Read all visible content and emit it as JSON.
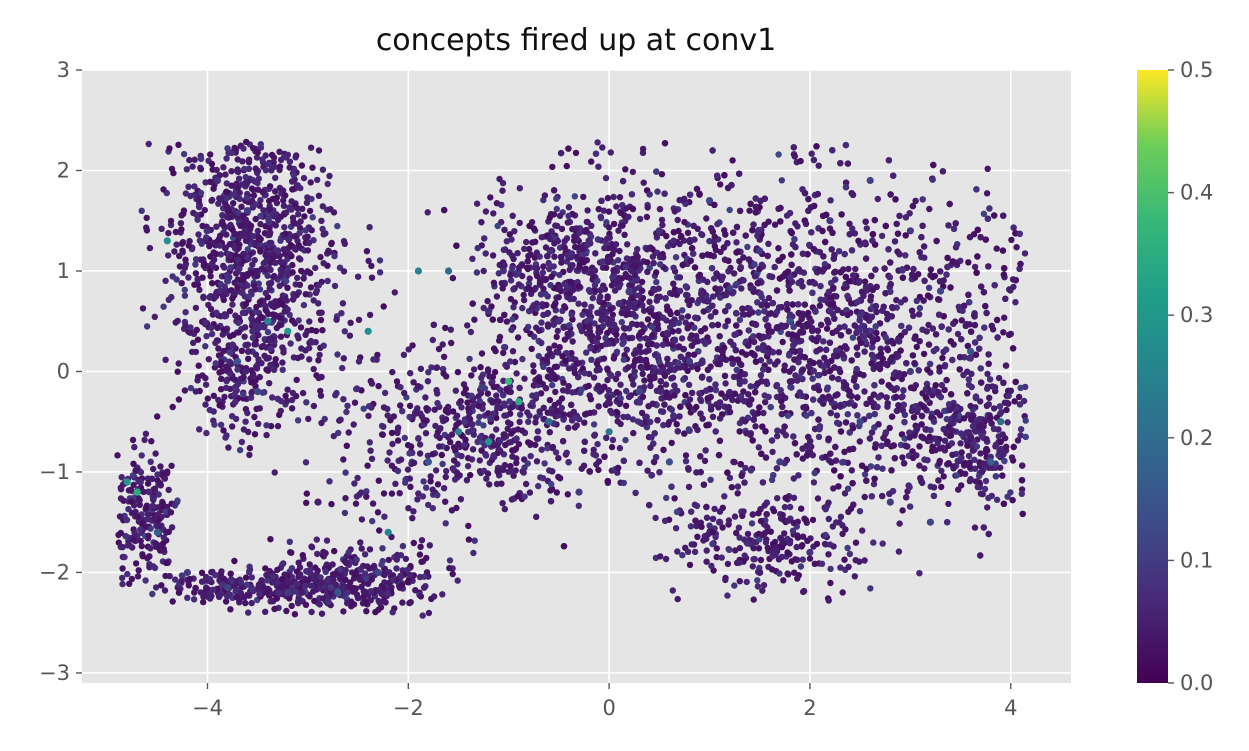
{
  "chart_data": {
    "type": "scatter",
    "title": "concepts fired up at conv1",
    "xlabel": "",
    "ylabel": "",
    "xlim": [
      -5.25,
      4.6
    ],
    "ylim": [
      -3.1,
      3.0
    ],
    "xticks": [
      -4,
      -2,
      0,
      2,
      4
    ],
    "xtick_labels": [
      "−4",
      "−2",
      "0",
      "2",
      "4"
    ],
    "yticks": [
      -3,
      -2,
      -1,
      0,
      1,
      2,
      3
    ],
    "ytick_labels": [
      "−3",
      "−2",
      "−1",
      "0",
      "1",
      "2",
      "3"
    ],
    "grid": true,
    "background": "#e5e5e5",
    "colormap": "viridis",
    "colorbar": {
      "range": [
        0.0,
        0.5
      ],
      "ticks": [
        0.0,
        0.1,
        0.2,
        0.3,
        0.4,
        0.5
      ],
      "tick_labels": [
        "0.0",
        "0.1",
        "0.2",
        "0.3",
        "0.4",
        "0.5"
      ]
    },
    "points": [
      [
        -3.9,
        1.9,
        0.08
      ],
      [
        -3.6,
        1.6,
        0.1
      ],
      [
        -3.3,
        1.2,
        0.07
      ],
      [
        -3.8,
        0.9,
        0.09
      ],
      [
        -3.4,
        0.5,
        0.25
      ],
      [
        -3.2,
        0.4,
        0.3
      ],
      [
        -3.7,
        0.1,
        0.15
      ],
      [
        -3.5,
        -0.2,
        0.12
      ],
      [
        -4.4,
        1.3,
        0.28
      ],
      [
        -4.8,
        -1.1,
        0.3
      ],
      [
        -4.7,
        -1.2,
        0.35
      ],
      [
        -4.5,
        -1.6,
        0.18
      ],
      [
        -4.2,
        -2.0,
        0.1
      ],
      [
        -3.8,
        -2.15,
        0.12
      ],
      [
        -3.2,
        -2.2,
        0.1
      ],
      [
        -2.7,
        -2.2,
        0.15
      ],
      [
        -2.3,
        -2.0,
        0.12
      ],
      [
        -2.2,
        -1.6,
        0.25
      ],
      [
        -2.9,
        -1.3,
        0.05
      ],
      [
        -2.4,
        0.4,
        0.28
      ],
      [
        -1.9,
        1.0,
        0.25
      ],
      [
        -1.6,
        1.0,
        0.2
      ],
      [
        -1.2,
        0.6,
        0.08
      ],
      [
        -1.0,
        -0.1,
        0.38
      ],
      [
        -0.9,
        -0.3,
        0.35
      ],
      [
        -1.2,
        -0.7,
        0.3
      ],
      [
        -1.5,
        -0.6,
        0.25
      ],
      [
        -0.6,
        -0.5,
        0.2
      ],
      [
        -1.8,
        -0.9,
        0.15
      ],
      [
        -0.3,
        -1.2,
        0.1
      ],
      [
        0.0,
        -0.6,
        0.22
      ],
      [
        0.3,
        -0.2,
        0.12
      ],
      [
        0.2,
        0.8,
        0.1
      ],
      [
        0.5,
        1.4,
        0.08
      ],
      [
        1.0,
        1.7,
        0.12
      ],
      [
        1.5,
        1.2,
        0.1
      ],
      [
        1.8,
        0.5,
        0.14
      ],
      [
        2.2,
        1.5,
        0.09
      ],
      [
        2.6,
        1.9,
        0.11
      ],
      [
        3.0,
        1.4,
        0.1
      ],
      [
        3.3,
        0.8,
        0.12
      ],
      [
        3.6,
        0.2,
        0.15
      ],
      [
        3.9,
        -0.5,
        0.2
      ],
      [
        3.8,
        -0.9,
        0.18
      ],
      [
        2.5,
        -0.5,
        0.12
      ],
      [
        1.7,
        -0.9,
        0.1
      ],
      [
        1.1,
        -1.5,
        0.06
      ],
      [
        1.5,
        -2.0,
        0.05
      ],
      [
        2.0,
        -1.8,
        0.08
      ],
      [
        2.8,
        -1.3,
        0.1
      ],
      [
        3.2,
        -1.5,
        0.12
      ],
      [
        0.8,
        0.1,
        0.1
      ],
      [
        -0.5,
        0.5,
        0.08
      ],
      [
        -0.2,
        1.3,
        0.06
      ],
      [
        0.6,
        -0.9,
        0.14
      ],
      [
        3.0,
        0.0,
        0.1
      ]
    ]
  }
}
